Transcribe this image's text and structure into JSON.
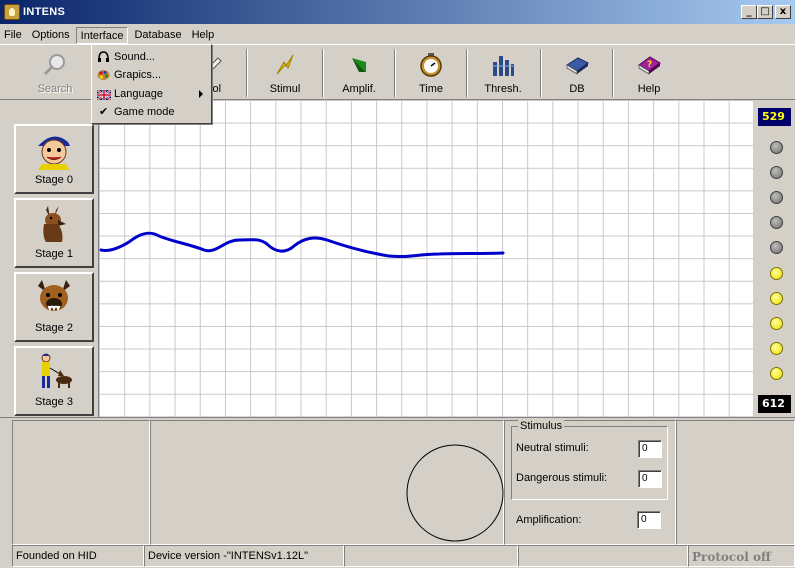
{
  "window": {
    "title": "INTENS",
    "min": "_",
    "max": "□",
    "close": "x"
  },
  "menubar": {
    "items": [
      "File",
      "Options",
      "Interface",
      "Database",
      "Help"
    ]
  },
  "toolbar": {
    "buttons": [
      {
        "label": "Search",
        "icon": "magnifier-icon",
        "enabled": false
      },
      {
        "label": "Protocol",
        "icon": "protocol-icon",
        "enabled": true
      },
      {
        "label": "Stimul",
        "icon": "lightning-icon",
        "enabled": true
      },
      {
        "label": "Amplif.",
        "icon": "amplifier-icon",
        "enabled": true
      },
      {
        "label": "Time",
        "icon": "stopwatch-icon",
        "enabled": true
      },
      {
        "label": "Thresh.",
        "icon": "threshold-bars-icon",
        "enabled": true
      },
      {
        "label": "DB",
        "icon": "database-book-icon",
        "enabled": true
      },
      {
        "label": "Help",
        "icon": "help-book-icon",
        "enabled": true
      }
    ],
    "protocol_visible": "ocol"
  },
  "interface_menu": {
    "items": [
      {
        "label": "Sound...",
        "icon": "headphones-icon"
      },
      {
        "label": "Grapics...",
        "icon": "palette-icon"
      },
      {
        "label": "Language",
        "icon": "uk-flag-icon",
        "submenu": true
      },
      {
        "label": "Game mode",
        "checked": true
      }
    ]
  },
  "stages": [
    {
      "label": "Stage 0",
      "icon": "boy-face-icon"
    },
    {
      "label": "Stage 1",
      "icon": "dog-sitting-icon"
    },
    {
      "label": "Stage 2",
      "icon": "dog-head-icon"
    },
    {
      "label": "Stage 3",
      "icon": "man-with-dog-icon"
    }
  ],
  "counters": {
    "top": "529",
    "bottom": "612"
  },
  "leds": [
    "gray",
    "gray",
    "gray",
    "gray",
    "gray",
    "yellow",
    "yellow",
    "yellow",
    "yellow",
    "yellow"
  ],
  "plot": {
    "line_color": "#0000cc"
  },
  "stimulus": {
    "legend": "Stimulus",
    "neutral_label": "Neutral stimuli:",
    "neutral_value": "0",
    "dangerous_label": "Dangerous stimuli:",
    "dangerous_value": "0",
    "amplification_label": "Amplification:",
    "amplification_value": "0"
  },
  "statusbar": {
    "founded": "Founded on HID",
    "device": "Device version -\"INTENSv1.12L\"",
    "cell3": "",
    "cell4": "",
    "protocol": "Protocol off"
  }
}
